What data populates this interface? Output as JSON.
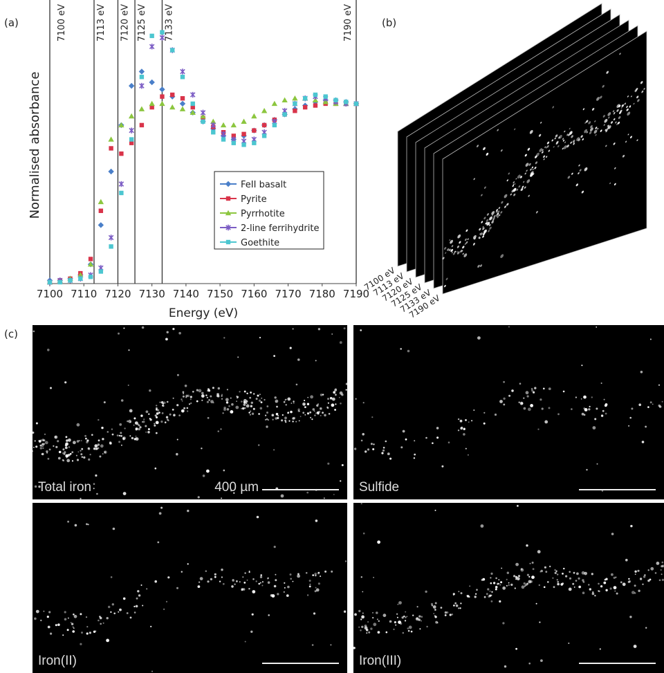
{
  "chart_data": {
    "type": "scatter",
    "xlabel": "Energy (eV)",
    "ylabel": "Normalised absorbance",
    "x": [
      7100,
      7103,
      7106,
      7109,
      7112,
      7115,
      7118,
      7121,
      7124,
      7127,
      7130,
      7133,
      7136,
      7139,
      7142,
      7145,
      7148,
      7151,
      7154,
      7157,
      7160,
      7163,
      7166,
      7169,
      7172,
      7175,
      7178,
      7181,
      7184,
      7187,
      7190
    ],
    "series": [
      {
        "name": "FeII basalt",
        "color": "#4a7fc9",
        "marker": "diamond",
        "values": [
          0.01,
          0.01,
          0.02,
          0.04,
          0.1,
          0.32,
          0.62,
          0.88,
          1.1,
          1.18,
          1.12,
          1.08,
          1.04,
          1.0,
          0.95,
          0.9,
          0.86,
          0.82,
          0.8,
          0.82,
          0.85,
          0.88,
          0.91,
          0.94,
          0.97,
          0.99,
          1.01,
          1.02,
          1.02,
          1.01,
          1.0
        ]
      },
      {
        "name": "Pyrite",
        "color": "#d9344a",
        "marker": "square",
        "values": [
          0.0,
          0.01,
          0.02,
          0.05,
          0.13,
          0.4,
          0.75,
          0.72,
          0.78,
          0.88,
          0.98,
          1.04,
          1.05,
          1.03,
          0.98,
          0.92,
          0.87,
          0.84,
          0.82,
          0.83,
          0.85,
          0.88,
          0.91,
          0.94,
          0.96,
          0.98,
          0.99,
          1.0,
          1.0,
          1.0,
          1.0
        ]
      },
      {
        "name": "Pyrrhotite",
        "color": "#8cc63f",
        "marker": "triangle",
        "values": [
          0.0,
          0.01,
          0.02,
          0.04,
          0.1,
          0.45,
          0.8,
          0.88,
          0.93,
          0.97,
          1.0,
          1.0,
          0.98,
          0.97,
          0.95,
          0.93,
          0.9,
          0.88,
          0.88,
          0.9,
          0.93,
          0.96,
          1.0,
          1.02,
          1.03,
          1.03,
          1.02,
          1.01,
          1.0,
          1.0,
          1.0
        ]
      },
      {
        "name": "2-line ferrihydrite",
        "color": "#7b5cc4",
        "marker": "x",
        "values": [
          0.0,
          0.01,
          0.01,
          0.02,
          0.04,
          0.08,
          0.25,
          0.55,
          0.85,
          1.1,
          1.32,
          1.37,
          1.3,
          1.18,
          1.05,
          0.95,
          0.88,
          0.83,
          0.8,
          0.79,
          0.8,
          0.84,
          0.9,
          0.96,
          1.0,
          1.03,
          1.04,
          1.03,
          1.01,
          1.0,
          1.0
        ]
      },
      {
        "name": "Goethite",
        "color": "#4cc6d0",
        "marker": "square",
        "values": [
          0.0,
          0.0,
          0.01,
          0.02,
          0.03,
          0.06,
          0.2,
          0.5,
          0.8,
          1.15,
          1.38,
          1.4,
          1.3,
          1.15,
          1.0,
          0.9,
          0.84,
          0.8,
          0.78,
          0.77,
          0.78,
          0.82,
          0.88,
          0.94,
          1.0,
          1.03,
          1.05,
          1.04,
          1.02,
          1.01,
          1.0
        ]
      }
    ],
    "xlim": [
      7100,
      7190
    ],
    "ylim": [
      0,
      1.55
    ],
    "xticks": [
      7100,
      7110,
      7120,
      7130,
      7140,
      7150,
      7160,
      7170,
      7180,
      7190
    ],
    "energy_lines": [
      {
        "value": 7100,
        "label": "7100 eV"
      },
      {
        "value": 7113,
        "label": "7113 eV"
      },
      {
        "value": 7120,
        "label": "7120 eV"
      },
      {
        "value": 7125,
        "label": "7125 eV"
      },
      {
        "value": 7133,
        "label": "7133 eV"
      },
      {
        "value": 7190,
        "label": "7190 eV"
      }
    ],
    "legend": "center-right"
  },
  "panels": {
    "a": "(a)",
    "b": "(b)",
    "c": "(c)"
  },
  "stack": {
    "layers": [
      "7100 eV",
      "7113 eV",
      "7120 eV",
      "7125 eV",
      "7133 eV",
      "7190 eV"
    ]
  },
  "maps": {
    "images": [
      "Total iron",
      "Sulfide",
      "Iron(II)",
      "Iron(III)"
    ],
    "scale_bar": "400 µm"
  }
}
